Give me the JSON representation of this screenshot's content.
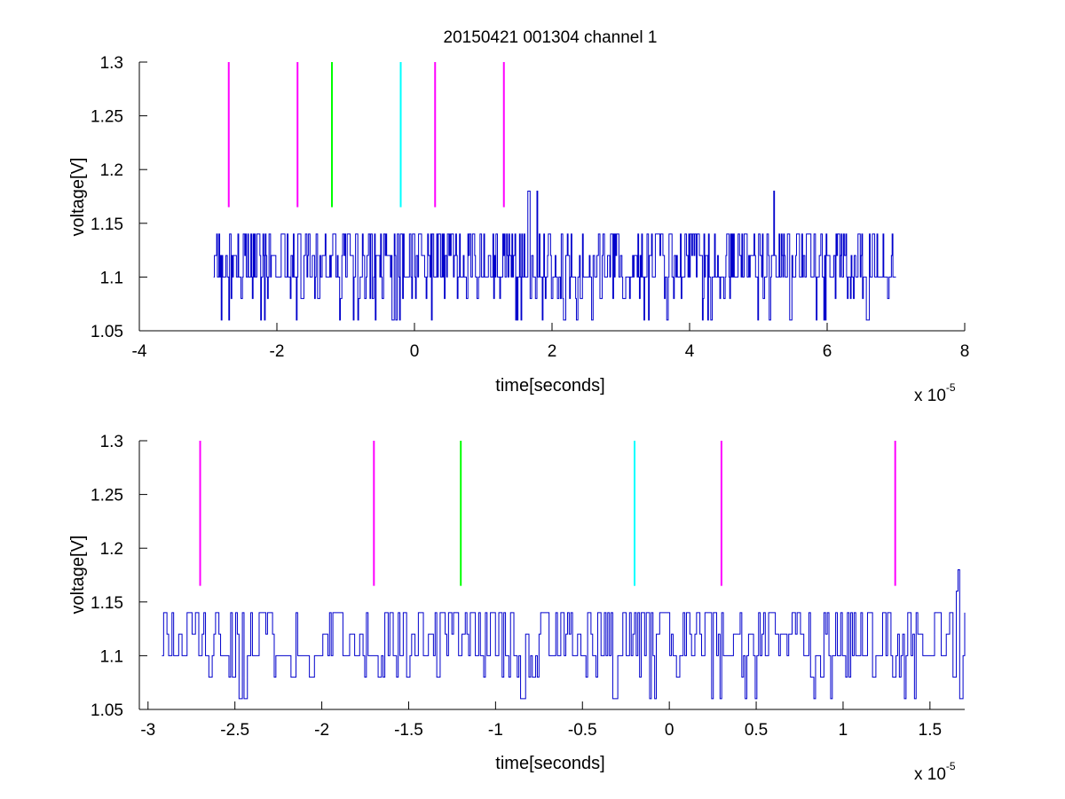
{
  "chart_data": [
    {
      "type": "line",
      "title": "20150421 001304 channel 1",
      "xlabel": "time[seconds]",
      "ylabel": "voltage[V]",
      "x_multiplier": {
        "base": "x 10",
        "exponent": "-5"
      },
      "xlim": [
        -4,
        8
      ],
      "ylim": [
        1.05,
        1.3
      ],
      "xticks": [
        -4,
        -2,
        0,
        2,
        4,
        6,
        8
      ],
      "yticks": [
        1.05,
        1.1,
        1.15,
        1.2,
        1.25,
        1.3
      ],
      "xtick_labels": [
        "-4",
        "-2",
        "0",
        "2",
        "4",
        "6",
        "8"
      ],
      "ytick_labels": [
        "1.05",
        "1.1",
        "1.15",
        "1.2",
        "1.25",
        "1.3"
      ],
      "grid": false,
      "signal": {
        "color": "#0000cc",
        "x_range": [
          -2.92,
          7.0
        ],
        "baseline": 1.1,
        "levels": [
          1.06,
          1.08,
          1.1,
          1.12,
          1.14
        ],
        "spikes": [
          {
            "x": 1.65,
            "y": 1.18
          },
          {
            "x": 1.78,
            "y": 1.18
          },
          {
            "x": 5.22,
            "y": 1.18
          }
        ]
      },
      "markers": [
        {
          "x": -2.7,
          "y_range": [
            1.165,
            1.3
          ],
          "color": "#ff00ff"
        },
        {
          "x": -1.7,
          "y_range": [
            1.165,
            1.3
          ],
          "color": "#ff00ff"
        },
        {
          "x": -1.2,
          "y_range": [
            1.165,
            1.3
          ],
          "color": "#00ff00"
        },
        {
          "x": -0.2,
          "y_range": [
            1.165,
            1.3
          ],
          "color": "#00ffff"
        },
        {
          "x": 0.3,
          "y_range": [
            1.165,
            1.3
          ],
          "color": "#ff00ff"
        },
        {
          "x": 1.3,
          "y_range": [
            1.165,
            1.3
          ],
          "color": "#ff00ff"
        }
      ]
    },
    {
      "type": "line",
      "title": "",
      "xlabel": "time[seconds]",
      "ylabel": "voltage[V]",
      "x_multiplier": {
        "base": "x 10",
        "exponent": "-5"
      },
      "xlim": [
        -3.05,
        1.7
      ],
      "ylim": [
        1.05,
        1.3
      ],
      "xticks": [
        -3,
        -2.5,
        -2,
        -1.5,
        -1,
        -0.5,
        0,
        0.5,
        1,
        1.5
      ],
      "yticks": [
        1.05,
        1.1,
        1.15,
        1.2,
        1.25,
        1.3
      ],
      "xtick_labels": [
        "-3",
        "-2.5",
        "-2",
        "-1.5",
        "-1",
        "-0.5",
        "0",
        "0.5",
        "1",
        "1.5"
      ],
      "ytick_labels": [
        "1.05",
        "1.1",
        "1.15",
        "1.2",
        "1.25",
        "1.3"
      ],
      "grid": false,
      "signal": {
        "color": "#0000cc",
        "x_range": [
          -2.92,
          1.7
        ],
        "baseline": 1.1,
        "levels": [
          1.06,
          1.08,
          1.1,
          1.12,
          1.14
        ],
        "spikes": [
          {
            "x": 1.66,
            "y": 1.18
          },
          {
            "x": 1.65,
            "y": 1.16
          }
        ]
      },
      "markers": [
        {
          "x": -2.7,
          "y_range": [
            1.165,
            1.3
          ],
          "color": "#ff00ff"
        },
        {
          "x": -1.7,
          "y_range": [
            1.165,
            1.3
          ],
          "color": "#ff00ff"
        },
        {
          "x": -1.2,
          "y_range": [
            1.165,
            1.3
          ],
          "color": "#00ff00"
        },
        {
          "x": -0.2,
          "y_range": [
            1.165,
            1.3
          ],
          "color": "#00ffff"
        },
        {
          "x": 0.3,
          "y_range": [
            1.165,
            1.3
          ],
          "color": "#ff00ff"
        },
        {
          "x": 1.3,
          "y_range": [
            1.165,
            1.3
          ],
          "color": "#ff00ff"
        }
      ]
    }
  ]
}
